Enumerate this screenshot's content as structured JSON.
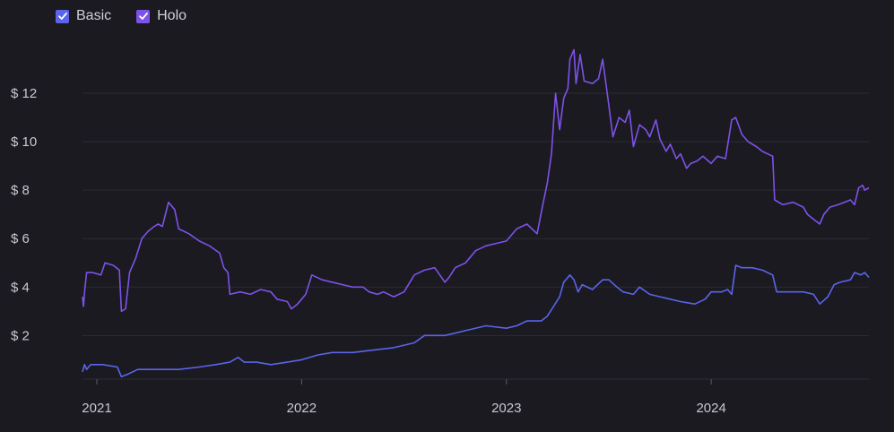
{
  "legend": [
    {
      "label": "Basic",
      "color": "#5b64ea",
      "checked": true,
      "icon": "check-icon"
    },
    {
      "label": "Holo",
      "color": "#7d52e8",
      "checked": true,
      "icon": "check-icon"
    }
  ],
  "chart_data": {
    "type": "line",
    "title": "",
    "xlabel": "",
    "ylabel": "",
    "ylim": [
      0.2,
      14.0
    ],
    "xlim": [
      2020.93,
      2024.77
    ],
    "grid": true,
    "legend_position": "top-left",
    "y_ticks": [
      {
        "value": 2,
        "label": "$ 2"
      },
      {
        "value": 4,
        "label": "$ 4"
      },
      {
        "value": 6,
        "label": "$ 6"
      },
      {
        "value": 8,
        "label": "$ 8"
      },
      {
        "value": 10,
        "label": "$ 10"
      },
      {
        "value": 12,
        "label": "$ 12"
      }
    ],
    "x_ticks": [
      {
        "value": 2021.0,
        "label": "2021"
      },
      {
        "value": 2022.0,
        "label": "2022"
      },
      {
        "value": 2023.0,
        "label": "2023"
      },
      {
        "value": 2024.0,
        "label": "2024"
      }
    ],
    "series": [
      {
        "name": "Basic",
        "color": "#5b64ea",
        "points": [
          [
            2020.93,
            0.5
          ],
          [
            2020.94,
            0.8
          ],
          [
            2020.95,
            0.6
          ],
          [
            2020.97,
            0.8
          ],
          [
            2021.03,
            0.8
          ],
          [
            2021.1,
            0.7
          ],
          [
            2021.12,
            0.3
          ],
          [
            2021.15,
            0.4
          ],
          [
            2021.2,
            0.6
          ],
          [
            2021.3,
            0.6
          ],
          [
            2021.4,
            0.6
          ],
          [
            2021.5,
            0.7
          ],
          [
            2021.58,
            0.8
          ],
          [
            2021.65,
            0.9
          ],
          [
            2021.69,
            1.1
          ],
          [
            2021.72,
            0.9
          ],
          [
            2021.78,
            0.9
          ],
          [
            2021.85,
            0.8
          ],
          [
            2021.93,
            0.9
          ],
          [
            2022.0,
            1.0
          ],
          [
            2022.08,
            1.2
          ],
          [
            2022.15,
            1.3
          ],
          [
            2022.25,
            1.3
          ],
          [
            2022.35,
            1.4
          ],
          [
            2022.45,
            1.5
          ],
          [
            2022.55,
            1.7
          ],
          [
            2022.6,
            2.0
          ],
          [
            2022.7,
            2.0
          ],
          [
            2022.8,
            2.2
          ],
          [
            2022.9,
            2.4
          ],
          [
            2023.0,
            2.3
          ],
          [
            2023.05,
            2.4
          ],
          [
            2023.1,
            2.6
          ],
          [
            2023.17,
            2.6
          ],
          [
            2023.2,
            2.8
          ],
          [
            2023.23,
            3.2
          ],
          [
            2023.26,
            3.6
          ],
          [
            2023.28,
            4.2
          ],
          [
            2023.31,
            4.5
          ],
          [
            2023.33,
            4.3
          ],
          [
            2023.35,
            3.8
          ],
          [
            2023.37,
            4.1
          ],
          [
            2023.42,
            3.9
          ],
          [
            2023.47,
            4.3
          ],
          [
            2023.5,
            4.3
          ],
          [
            2023.54,
            4.0
          ],
          [
            2023.57,
            3.8
          ],
          [
            2023.62,
            3.7
          ],
          [
            2023.65,
            4.0
          ],
          [
            2023.7,
            3.7
          ],
          [
            2023.75,
            3.6
          ],
          [
            2023.8,
            3.5
          ],
          [
            2023.85,
            3.4
          ],
          [
            2023.92,
            3.3
          ],
          [
            2023.97,
            3.5
          ],
          [
            2024.0,
            3.8
          ],
          [
            2024.05,
            3.8
          ],
          [
            2024.08,
            3.9
          ],
          [
            2024.1,
            3.7
          ],
          [
            2024.12,
            4.9
          ],
          [
            2024.15,
            4.8
          ],
          [
            2024.2,
            4.8
          ],
          [
            2024.25,
            4.7
          ],
          [
            2024.3,
            4.5
          ],
          [
            2024.32,
            3.8
          ],
          [
            2024.38,
            3.8
          ],
          [
            2024.45,
            3.8
          ],
          [
            2024.5,
            3.7
          ],
          [
            2024.53,
            3.3
          ],
          [
            2024.57,
            3.6
          ],
          [
            2024.6,
            4.1
          ],
          [
            2024.63,
            4.2
          ],
          [
            2024.68,
            4.3
          ],
          [
            2024.7,
            4.6
          ],
          [
            2024.73,
            4.5
          ],
          [
            2024.75,
            4.6
          ],
          [
            2024.77,
            4.4
          ]
        ]
      },
      {
        "name": "Holo",
        "color": "#7d52e8",
        "points": [
          [
            2020.93,
            3.6
          ],
          [
            2020.935,
            3.2
          ],
          [
            2020.94,
            3.8
          ],
          [
            2020.95,
            4.6
          ],
          [
            2020.98,
            4.6
          ],
          [
            2021.02,
            4.5
          ],
          [
            2021.04,
            5.0
          ],
          [
            2021.08,
            4.9
          ],
          [
            2021.11,
            4.7
          ],
          [
            2021.12,
            3.0
          ],
          [
            2021.14,
            3.1
          ],
          [
            2021.16,
            4.6
          ],
          [
            2021.19,
            5.2
          ],
          [
            2021.22,
            6.0
          ],
          [
            2021.25,
            6.3
          ],
          [
            2021.28,
            6.5
          ],
          [
            2021.3,
            6.6
          ],
          [
            2021.32,
            6.5
          ],
          [
            2021.35,
            7.5
          ],
          [
            2021.38,
            7.2
          ],
          [
            2021.4,
            6.4
          ],
          [
            2021.45,
            6.2
          ],
          [
            2021.5,
            5.9
          ],
          [
            2021.55,
            5.7
          ],
          [
            2021.6,
            5.4
          ],
          [
            2021.62,
            4.8
          ],
          [
            2021.64,
            4.6
          ],
          [
            2021.65,
            3.7
          ],
          [
            2021.7,
            3.8
          ],
          [
            2021.75,
            3.7
          ],
          [
            2021.8,
            3.9
          ],
          [
            2021.85,
            3.8
          ],
          [
            2021.88,
            3.5
          ],
          [
            2021.93,
            3.4
          ],
          [
            2021.95,
            3.1
          ],
          [
            2021.98,
            3.3
          ],
          [
            2022.02,
            3.7
          ],
          [
            2022.05,
            4.5
          ],
          [
            2022.1,
            4.3
          ],
          [
            2022.2,
            4.1
          ],
          [
            2022.25,
            4.0
          ],
          [
            2022.3,
            4.0
          ],
          [
            2022.33,
            3.8
          ],
          [
            2022.37,
            3.7
          ],
          [
            2022.4,
            3.8
          ],
          [
            2022.45,
            3.6
          ],
          [
            2022.5,
            3.8
          ],
          [
            2022.55,
            4.5
          ],
          [
            2022.6,
            4.7
          ],
          [
            2022.65,
            4.8
          ],
          [
            2022.7,
            4.2
          ],
          [
            2022.72,
            4.4
          ],
          [
            2022.75,
            4.8
          ],
          [
            2022.8,
            5.0
          ],
          [
            2022.85,
            5.5
          ],
          [
            2022.9,
            5.7
          ],
          [
            2022.95,
            5.8
          ],
          [
            2023.0,
            5.9
          ],
          [
            2023.05,
            6.4
          ],
          [
            2023.1,
            6.6
          ],
          [
            2023.15,
            6.2
          ],
          [
            2023.18,
            7.5
          ],
          [
            2023.2,
            8.3
          ],
          [
            2023.22,
            9.5
          ],
          [
            2023.24,
            12.0
          ],
          [
            2023.26,
            10.5
          ],
          [
            2023.28,
            11.8
          ],
          [
            2023.3,
            12.2
          ],
          [
            2023.31,
            13.4
          ],
          [
            2023.33,
            13.8
          ],
          [
            2023.34,
            12.4
          ],
          [
            2023.36,
            13.6
          ],
          [
            2023.38,
            12.5
          ],
          [
            2023.42,
            12.4
          ],
          [
            2023.45,
            12.6
          ],
          [
            2023.47,
            13.4
          ],
          [
            2023.5,
            11.5
          ],
          [
            2023.52,
            10.2
          ],
          [
            2023.55,
            11.0
          ],
          [
            2023.58,
            10.8
          ],
          [
            2023.6,
            11.3
          ],
          [
            2023.62,
            9.8
          ],
          [
            2023.65,
            10.7
          ],
          [
            2023.68,
            10.5
          ],
          [
            2023.7,
            10.2
          ],
          [
            2023.73,
            10.9
          ],
          [
            2023.75,
            10.1
          ],
          [
            2023.78,
            9.6
          ],
          [
            2023.8,
            9.9
          ],
          [
            2023.83,
            9.3
          ],
          [
            2023.85,
            9.5
          ],
          [
            2023.88,
            8.9
          ],
          [
            2023.9,
            9.1
          ],
          [
            2023.93,
            9.2
          ],
          [
            2023.96,
            9.4
          ],
          [
            2024.0,
            9.1
          ],
          [
            2024.03,
            9.4
          ],
          [
            2024.07,
            9.3
          ],
          [
            2024.1,
            10.9
          ],
          [
            2024.12,
            11.0
          ],
          [
            2024.15,
            10.3
          ],
          [
            2024.18,
            10.0
          ],
          [
            2024.22,
            9.8
          ],
          [
            2024.25,
            9.6
          ],
          [
            2024.3,
            9.4
          ],
          [
            2024.31,
            7.6
          ],
          [
            2024.35,
            7.4
          ],
          [
            2024.4,
            7.5
          ],
          [
            2024.45,
            7.3
          ],
          [
            2024.47,
            7.0
          ],
          [
            2024.5,
            6.8
          ],
          [
            2024.53,
            6.6
          ],
          [
            2024.55,
            7.0
          ],
          [
            2024.58,
            7.3
          ],
          [
            2024.62,
            7.4
          ],
          [
            2024.65,
            7.5
          ],
          [
            2024.68,
            7.6
          ],
          [
            2024.7,
            7.4
          ],
          [
            2024.72,
            8.1
          ],
          [
            2024.74,
            8.2
          ],
          [
            2024.75,
            8.0
          ],
          [
            2024.77,
            8.1
          ]
        ]
      }
    ]
  }
}
